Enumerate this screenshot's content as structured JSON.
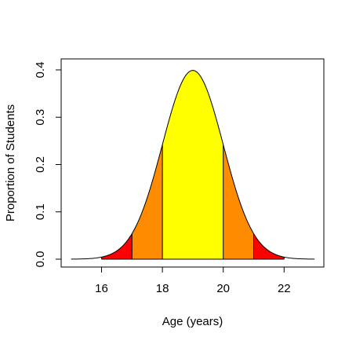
{
  "chart_data": {
    "type": "area",
    "title": "",
    "xlabel": "Age (years)",
    "ylabel": "Proportion of Students",
    "xlim": [
      15,
      23
    ],
    "ylim": [
      0,
      0.4
    ],
    "x_ticks": [
      16,
      18,
      20,
      22
    ],
    "y_ticks": [
      0.0,
      0.1,
      0.2,
      0.3,
      0.4
    ],
    "x_tick_labels": [
      "16",
      "18",
      "20",
      "22"
    ],
    "y_tick_labels": [
      "0.0",
      "0.1",
      "0.2",
      "0.3",
      "0.4"
    ],
    "grid": false,
    "legend": "none",
    "curve": {
      "distribution": "normal",
      "mean": 19,
      "sd": 1,
      "x_range": [
        15,
        23
      ]
    },
    "bands": [
      {
        "from": 16,
        "to": 17,
        "color": "#ff0000"
      },
      {
        "from": 17,
        "to": 18,
        "color": "#ff8c00"
      },
      {
        "from": 18,
        "to": 20,
        "color": "#ffff00"
      },
      {
        "from": 20,
        "to": 21,
        "color": "#ff8c00"
      },
      {
        "from": 21,
        "to": 22,
        "color": "#ff0000"
      }
    ]
  }
}
